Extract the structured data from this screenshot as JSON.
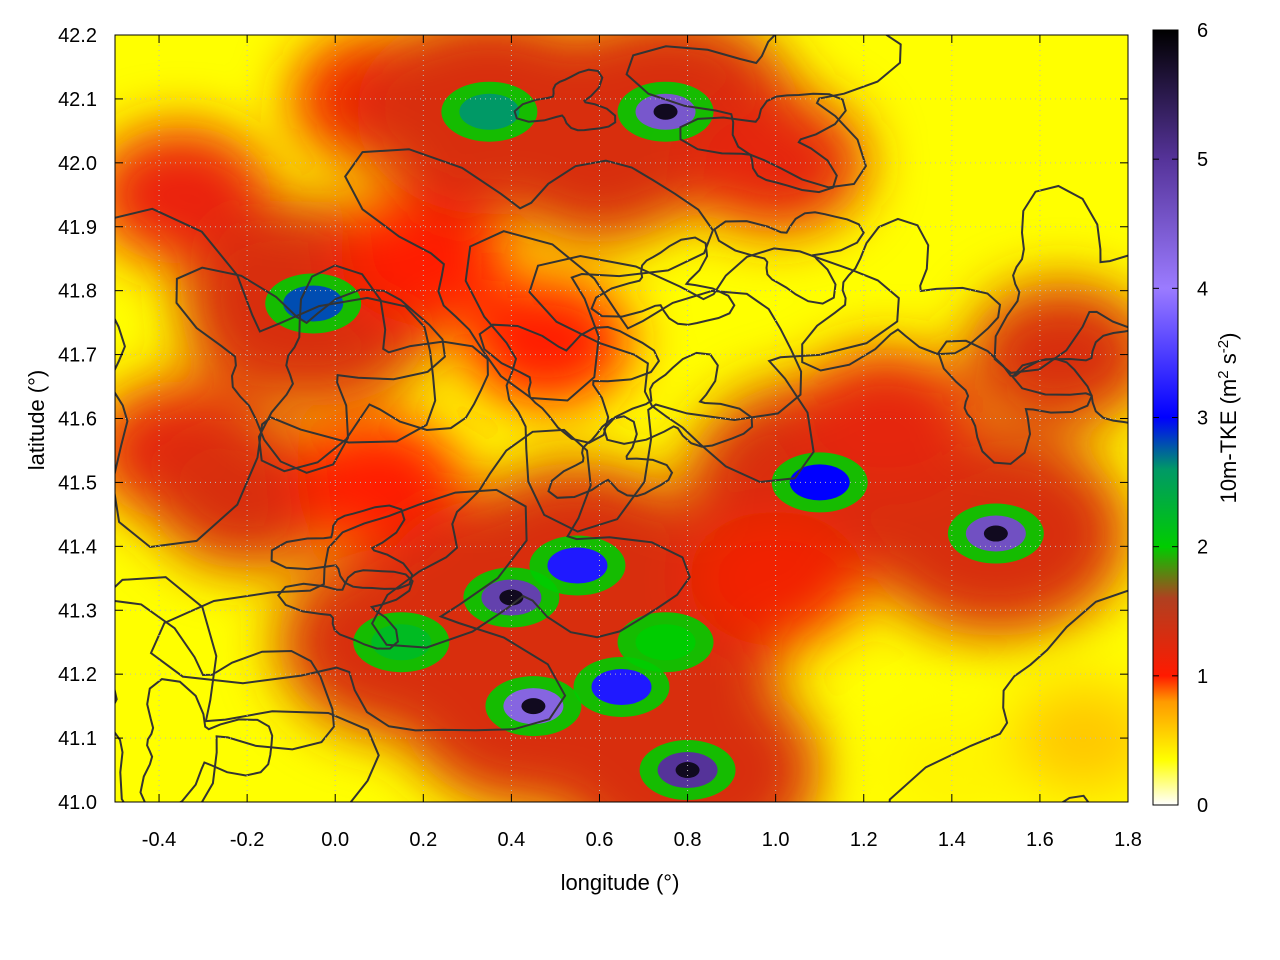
{
  "chart_data": {
    "type": "heatmap",
    "xlabel": "longitude (°)",
    "ylabel": "latitude (°)",
    "xlim": [
      -0.5,
      1.8
    ],
    "ylim": [
      41.0,
      42.2
    ],
    "xticks": [
      -0.4,
      -0.2,
      0.0,
      0.2,
      0.4,
      0.6,
      0.8,
      1.0,
      1.2,
      1.4,
      1.6,
      1.8
    ],
    "xtick_labels": [
      "-0.4",
      "-0.2",
      "0.0",
      "0.2",
      "0.4",
      "0.6",
      "0.8",
      "1.0",
      "1.2",
      "1.4",
      "1.6",
      "1.8"
    ],
    "yticks": [
      41.0,
      41.1,
      41.2,
      41.3,
      41.4,
      41.5,
      41.6,
      41.7,
      41.8,
      41.9,
      42.0,
      42.1,
      42.2
    ],
    "ytick_labels": [
      "41.0",
      "41.1",
      "41.2",
      "41.3",
      "41.4",
      "41.5",
      "41.6",
      "41.7",
      "41.8",
      "41.9",
      "42.0",
      "42.1",
      "42.2"
    ],
    "grid": true,
    "colorbar": {
      "label": "10m-TKE (m",
      "label_sup1": "2",
      "label_mid": " s",
      "label_sup2": "-2",
      "label_end": ")",
      "range": [
        0,
        6
      ],
      "ticks": [
        0,
        1,
        2,
        3,
        4,
        5,
        6
      ],
      "tick_labels": [
        "0",
        "1",
        "2",
        "3",
        "4",
        "5",
        "6"
      ],
      "colormap": [
        {
          "v": 0.0,
          "c": "#ffffff"
        },
        {
          "v": 0.35,
          "c": "#ffff00"
        },
        {
          "v": 0.8,
          "c": "#ff9a00"
        },
        {
          "v": 1.0,
          "c": "#ff1a00"
        },
        {
          "v": 1.6,
          "c": "#b04020"
        },
        {
          "v": 2.0,
          "c": "#00cc00"
        },
        {
          "v": 2.6,
          "c": "#009966"
        },
        {
          "v": 3.0,
          "c": "#0000ff"
        },
        {
          "v": 4.0,
          "c": "#9b7bff"
        },
        {
          "v": 5.0,
          "c": "#553399"
        },
        {
          "v": 6.0,
          "c": "#000000"
        }
      ]
    },
    "field_hotspots": [
      {
        "lon": -0.35,
        "lat": 41.95,
        "tke": 1.15
      },
      {
        "lon": -0.15,
        "lat": 41.75,
        "tke": 1.0
      },
      {
        "lon": -0.35,
        "lat": 41.55,
        "tke": 1.2
      },
      {
        "lon": -0.2,
        "lat": 41.48,
        "tke": 1.35
      },
      {
        "lon": 0.1,
        "lat": 41.5,
        "tke": 1.0
      },
      {
        "lon": -0.05,
        "lat": 41.78,
        "tke": 2.8
      },
      {
        "lon": 0.2,
        "lat": 41.85,
        "tke": 1.0
      },
      {
        "lon": 0.48,
        "lat": 41.72,
        "tke": 1.0
      },
      {
        "lon": 0.15,
        "lat": 41.25,
        "tke": 2.2
      },
      {
        "lon": 0.4,
        "lat": 41.32,
        "tke": 4.8
      },
      {
        "lon": 0.55,
        "lat": 41.37,
        "tke": 3.2
      },
      {
        "lon": 0.45,
        "lat": 41.15,
        "tke": 4.3
      },
      {
        "lon": 0.65,
        "lat": 41.18,
        "tke": 3.2
      },
      {
        "lon": 0.8,
        "lat": 41.05,
        "tke": 5.0
      },
      {
        "lon": 0.75,
        "lat": 41.25,
        "tke": 2.0
      },
      {
        "lon": 0.1,
        "lat": 42.1,
        "tke": 1.1
      },
      {
        "lon": 0.35,
        "lat": 42.08,
        "tke": 2.6
      },
      {
        "lon": 0.75,
        "lat": 42.08,
        "tke": 4.5
      },
      {
        "lon": 0.6,
        "lat": 42.0,
        "tke": 1.6
      },
      {
        "lon": 1.0,
        "lat": 42.0,
        "tke": 1.2
      },
      {
        "lon": 1.5,
        "lat": 41.42,
        "tke": 4.6
      },
      {
        "lon": 1.1,
        "lat": 41.5,
        "tke": 3.0
      },
      {
        "lon": 1.25,
        "lat": 41.6,
        "tke": 1.2
      },
      {
        "lon": 1.65,
        "lat": 41.7,
        "tke": 1.3
      },
      {
        "lon": 1.0,
        "lat": 41.35,
        "tke": 1.1
      },
      {
        "lon": 1.7,
        "lat": 41.1,
        "tke": 0.6
      },
      {
        "lon": 1.4,
        "lat": 41.05,
        "tke": 0.4
      }
    ]
  }
}
